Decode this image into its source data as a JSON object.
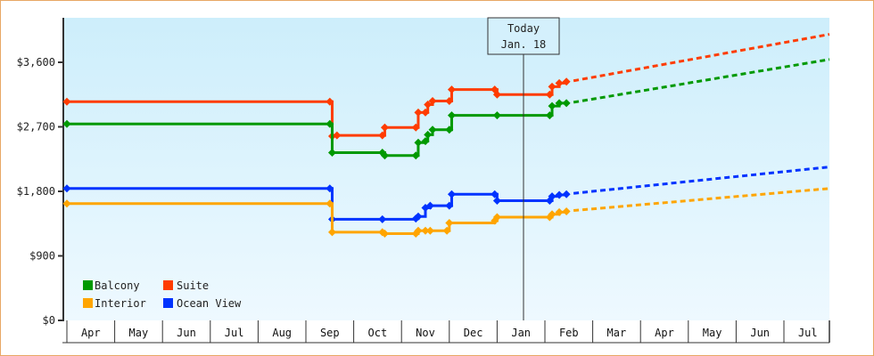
{
  "chart_data": {
    "type": "line",
    "title": "",
    "xlabel": "",
    "ylabel": "",
    "ylim": [
      0,
      3700
    ],
    "yticks": [
      {
        "value": 0,
        "label": "$0"
      },
      {
        "value": 900,
        "label": "$900"
      },
      {
        "value": 1800,
        "label": "$1,800"
      },
      {
        "value": 2700,
        "label": "$2,700"
      },
      {
        "value": 3600,
        "label": "$3,600"
      }
    ],
    "x_categories": [
      "Apr",
      "May",
      "Jun",
      "Jul",
      "Aug",
      "Sep",
      "Oct",
      "Nov",
      "Dec",
      "Jan",
      "Feb",
      "Mar",
      "Apr",
      "May",
      "Jun",
      "Jul"
    ],
    "grid": false,
    "legend_position": "bottom-left (inside plot)",
    "annotation": {
      "label_line1": "Today",
      "label_line2": "Jan. 18",
      "x_month_index": 9.55
    },
    "series": [
      {
        "name": "Suite",
        "color": "#ff3c00",
        "points": [
          {
            "m": 0.0,
            "v": 3050
          },
          {
            "m": 5.5,
            "v": 3050
          },
          {
            "m": 5.55,
            "v": 2570
          },
          {
            "m": 5.65,
            "v": 2580
          },
          {
            "m": 6.6,
            "v": 2580
          },
          {
            "m": 6.65,
            "v": 2690
          },
          {
            "m": 7.3,
            "v": 2690
          },
          {
            "m": 7.35,
            "v": 2900
          },
          {
            "m": 7.5,
            "v": 2900
          },
          {
            "m": 7.55,
            "v": 3010
          },
          {
            "m": 7.65,
            "v": 3060
          },
          {
            "m": 8.0,
            "v": 3060
          },
          {
            "m": 8.05,
            "v": 3220
          },
          {
            "m": 8.95,
            "v": 3220
          },
          {
            "m": 9.0,
            "v": 3150
          },
          {
            "m": 10.1,
            "v": 3150
          },
          {
            "m": 10.15,
            "v": 3260
          },
          {
            "m": 10.3,
            "v": 3310
          },
          {
            "m": 10.45,
            "v": 3330
          }
        ],
        "projection": [
          {
            "m": 10.45,
            "v": 3330
          },
          {
            "m": 15.98,
            "v": 3990
          }
        ]
      },
      {
        "name": "Balcony",
        "color": "#009900",
        "points": [
          {
            "m": 0.0,
            "v": 2740
          },
          {
            "m": 5.5,
            "v": 2740
          },
          {
            "m": 5.55,
            "v": 2340
          },
          {
            "m": 6.6,
            "v": 2340
          },
          {
            "m": 6.65,
            "v": 2300
          },
          {
            "m": 7.3,
            "v": 2300
          },
          {
            "m": 7.35,
            "v": 2480
          },
          {
            "m": 7.5,
            "v": 2500
          },
          {
            "m": 7.55,
            "v": 2590
          },
          {
            "m": 7.65,
            "v": 2660
          },
          {
            "m": 8.0,
            "v": 2660
          },
          {
            "m": 8.05,
            "v": 2860
          },
          {
            "m": 9.0,
            "v": 2860
          },
          {
            "m": 10.1,
            "v": 2860
          },
          {
            "m": 10.15,
            "v": 2990
          },
          {
            "m": 10.3,
            "v": 3030
          },
          {
            "m": 10.45,
            "v": 3030
          }
        ],
        "projection": [
          {
            "m": 10.45,
            "v": 3030
          },
          {
            "m": 15.98,
            "v": 3640
          }
        ]
      },
      {
        "name": "Ocean View",
        "color": "#0033ff",
        "points": [
          {
            "m": 0.0,
            "v": 1840
          },
          {
            "m": 5.5,
            "v": 1840
          },
          {
            "m": 5.55,
            "v": 1410
          },
          {
            "m": 6.6,
            "v": 1410
          },
          {
            "m": 7.3,
            "v": 1420
          },
          {
            "m": 7.35,
            "v": 1450
          },
          {
            "m": 7.5,
            "v": 1570
          },
          {
            "m": 7.6,
            "v": 1600
          },
          {
            "m": 8.0,
            "v": 1600
          },
          {
            "m": 8.05,
            "v": 1760
          },
          {
            "m": 8.95,
            "v": 1760
          },
          {
            "m": 9.0,
            "v": 1670
          },
          {
            "m": 10.1,
            "v": 1670
          },
          {
            "m": 10.15,
            "v": 1730
          },
          {
            "m": 10.3,
            "v": 1750
          },
          {
            "m": 10.45,
            "v": 1760
          }
        ],
        "projection": [
          {
            "m": 10.45,
            "v": 1760
          },
          {
            "m": 15.98,
            "v": 2140
          }
        ]
      },
      {
        "name": "Interior",
        "color": "#ffa500",
        "points": [
          {
            "m": 0.0,
            "v": 1630
          },
          {
            "m": 5.5,
            "v": 1630
          },
          {
            "m": 5.55,
            "v": 1230
          },
          {
            "m": 6.6,
            "v": 1230
          },
          {
            "m": 6.65,
            "v": 1210
          },
          {
            "m": 7.3,
            "v": 1210
          },
          {
            "m": 7.35,
            "v": 1250
          },
          {
            "m": 7.5,
            "v": 1250
          },
          {
            "m": 7.6,
            "v": 1250
          },
          {
            "m": 7.95,
            "v": 1250
          },
          {
            "m": 8.0,
            "v": 1360
          },
          {
            "m": 8.95,
            "v": 1390
          },
          {
            "m": 9.0,
            "v": 1440
          },
          {
            "m": 10.1,
            "v": 1440
          },
          {
            "m": 10.15,
            "v": 1480
          },
          {
            "m": 10.3,
            "v": 1510
          },
          {
            "m": 10.45,
            "v": 1520
          }
        ],
        "projection": [
          {
            "m": 10.45,
            "v": 1520
          },
          {
            "m": 15.98,
            "v": 1840
          }
        ]
      }
    ]
  },
  "legend": {
    "items": [
      {
        "label": "Balcony",
        "color": "#009900"
      },
      {
        "label": "Suite",
        "color": "#ff3c00"
      },
      {
        "label": "Interior",
        "color": "#ffa500"
      },
      {
        "label": "Ocean View",
        "color": "#0033ff"
      }
    ]
  },
  "today_marker": {
    "line1": "Today",
    "line2": "Jan. 18"
  }
}
